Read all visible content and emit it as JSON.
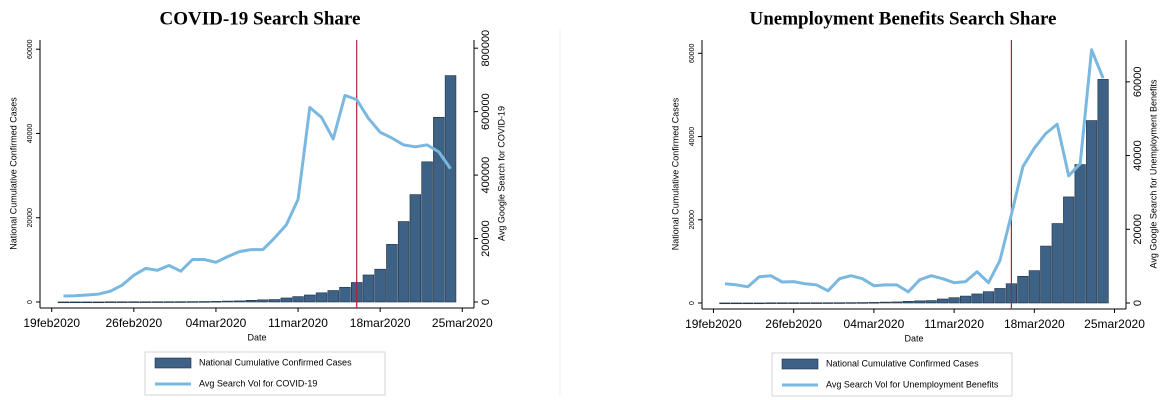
{
  "chart_data": [
    {
      "type": "bar-line",
      "title": "COVID-19 Search Share",
      "xlabel": "Date",
      "ylabel": "National Cumulative Confirmed Cases",
      "y2label": "Avg Google Search for COVID-19",
      "x": [
        "20feb2020",
        "21feb2020",
        "22feb2020",
        "23feb2020",
        "24feb2020",
        "25feb2020",
        "26feb2020",
        "27feb2020",
        "28feb2020",
        "29feb2020",
        "01mar2020",
        "02mar2020",
        "03mar2020",
        "04mar2020",
        "05mar2020",
        "06mar2020",
        "07mar2020",
        "08mar2020",
        "09mar2020",
        "10mar2020",
        "11mar2020",
        "12mar2020",
        "13mar2020",
        "14mar2020",
        "15mar2020",
        "16mar2020",
        "17mar2020",
        "18mar2020",
        "19mar2020",
        "20mar2020",
        "21mar2020",
        "22mar2020",
        "23mar2020",
        "24mar2020"
      ],
      "xlim": [
        "18feb2020",
        "26mar2020"
      ],
      "xticks": [
        "19feb2020",
        "26feb2020",
        "04mar2020",
        "11mar2020",
        "18mar2020",
        "25mar2020"
      ],
      "ylim": [
        0,
        61000
      ],
      "yticks": [
        0,
        20000,
        40000,
        60000
      ],
      "y2lim": [
        0,
        810000
      ],
      "y2ticks": [
        0,
        200000,
        400000,
        600000,
        800000
      ],
      "vline": "16mar2020",
      "vline_color": "#b0203a",
      "legend": "bottom",
      "series": [
        {
          "name": "National Cumulative Confirmed Cases",
          "type": "bar",
          "color": "#3e6285",
          "values": [
            15,
            15,
            15,
            15,
            51,
            51,
            57,
            58,
            60,
            68,
            74,
            98,
            118,
            149,
            217,
            262,
            402,
            518,
            583,
            959,
            1281,
            1663,
            2179,
            2726,
            3499,
            4632,
            6421,
            7786,
            13680,
            19101,
            25493,
            33276,
            43847,
            53740
          ]
        },
        {
          "name": "Avg Search Vol for COVID-19",
          "type": "line",
          "axis": "y2",
          "color": "#7ab8e0",
          "values": [
            19000,
            20000,
            22000,
            25000,
            34000,
            53000,
            84000,
            106000,
            100000,
            115000,
            97000,
            134000,
            134000,
            125000,
            143000,
            159000,
            165000,
            165000,
            202000,
            243000,
            324000,
            613000,
            582000,
            514000,
            651000,
            638000,
            579000,
            535000,
            517000,
            495000,
            489000,
            495000,
            473000,
            420000
          ]
        }
      ]
    },
    {
      "type": "bar-line",
      "title": "Unemployment Benefits Search Share",
      "xlabel": "Date",
      "ylabel": "National Cumulative Confirmed Cases",
      "y2label": "Avg Google Search for Unemployment Benefits",
      "x": [
        "20feb2020",
        "21feb2020",
        "22feb2020",
        "23feb2020",
        "24feb2020",
        "25feb2020",
        "26feb2020",
        "27feb2020",
        "28feb2020",
        "29feb2020",
        "01mar2020",
        "02mar2020",
        "03mar2020",
        "04mar2020",
        "05mar2020",
        "06mar2020",
        "07mar2020",
        "08mar2020",
        "09mar2020",
        "10mar2020",
        "11mar2020",
        "12mar2020",
        "13mar2020",
        "14mar2020",
        "15mar2020",
        "16mar2020",
        "17mar2020",
        "18mar2020",
        "19mar2020",
        "20mar2020",
        "21mar2020",
        "22mar2020",
        "23mar2020",
        "24mar2020"
      ],
      "xlim": [
        "18feb2020",
        "26mar2020"
      ],
      "xticks": [
        "19feb2020",
        "26feb2020",
        "04mar2020",
        "11mar2020",
        "18mar2020",
        "25mar2020"
      ],
      "ylim": [
        0,
        62000
      ],
      "yticks": [
        0,
        20000,
        40000,
        60000
      ],
      "y2lim": [
        0,
        70000
      ],
      "y2ticks": [
        0,
        20000,
        40000,
        60000
      ],
      "vline": "16mar2020",
      "vline_color": "#b0203a",
      "legend": "bottom",
      "series": [
        {
          "name": "National Cumulative Confirmed Cases",
          "type": "bar",
          "color": "#3e6285",
          "values": [
            15,
            15,
            15,
            15,
            51,
            51,
            57,
            58,
            60,
            68,
            74,
            98,
            118,
            149,
            217,
            262,
            402,
            518,
            583,
            959,
            1281,
            1663,
            2179,
            2726,
            3499,
            4632,
            6421,
            7786,
            13680,
            19101,
            25493,
            33276,
            43847,
            53740
          ]
        },
        {
          "name": "Avg Search Vol for Unemployment Benefits",
          "type": "line",
          "axis": "y2",
          "color": "#7ab8e0",
          "values": [
            5200,
            4900,
            4400,
            7100,
            7400,
            5700,
            5800,
            5200,
            4900,
            3300,
            6600,
            7400,
            6600,
            4700,
            4900,
            4900,
            3000,
            6300,
            7400,
            6600,
            5500,
            5800,
            8500,
            5500,
            11500,
            24000,
            37000,
            42000,
            46000,
            48500,
            34500,
            37800,
            68700,
            61000
          ]
        }
      ]
    }
  ]
}
